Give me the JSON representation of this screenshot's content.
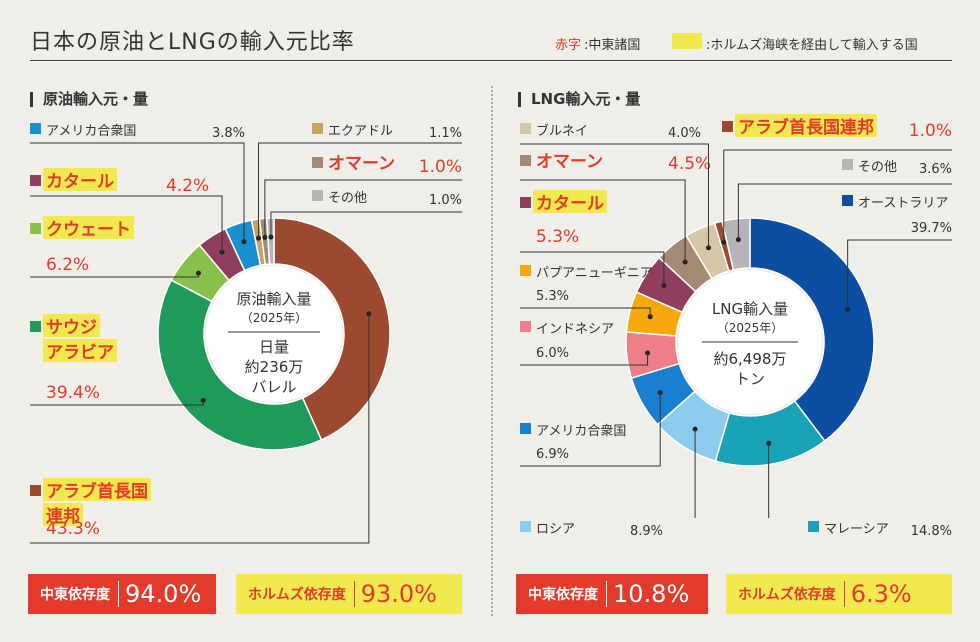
{
  "title": "日本の原油とLNGの輸入元比率",
  "legend": {
    "red_label": "赤字",
    "red_text": ":中東諸国",
    "yellow_text": ":ホルムズ海峡を経由して輸入する国"
  },
  "colors": {
    "red": "#e23b2b",
    "highlight": "#f2e94e"
  },
  "chart_data": [
    {
      "type": "pie",
      "section_title": "原油輸入元・量",
      "center": {
        "line1": "原油輸入量",
        "line2": "（2025年）",
        "line3": "日量",
        "line4": "約236万",
        "line5": "バレル"
      },
      "unit": "%",
      "slices": [
        {
          "name": "アラブ首長国連邦",
          "value": 43.3,
          "value_label": "43.3%",
          "color": "#9b4a30",
          "middle_east": true,
          "hormuz": true
        },
        {
          "name": "サウジアラビア",
          "value": 39.4,
          "value_label": "39.4%",
          "color": "#1f9a5a",
          "middle_east": true,
          "hormuz": true
        },
        {
          "name": "クウェート",
          "value": 6.2,
          "value_label": "6.2%",
          "color": "#88c04a",
          "middle_east": true,
          "hormuz": true
        },
        {
          "name": "カタール",
          "value": 4.2,
          "value_label": "4.2%",
          "color": "#8f3e5e",
          "middle_east": true,
          "hormuz": true
        },
        {
          "name": "アメリカ合衆国",
          "value": 3.8,
          "value_label": "3.8%",
          "color": "#1a8fd0",
          "middle_east": false,
          "hormuz": false
        },
        {
          "name": "エクアドル",
          "value": 1.1,
          "value_label": "1.1%",
          "color": "#c9a062",
          "middle_east": false,
          "hormuz": false
        },
        {
          "name": "オマーン",
          "value": 1.0,
          "value_label": "1.0%",
          "color": "#a48a72",
          "middle_east": true,
          "hormuz": false
        },
        {
          "name": "その他",
          "value": 1.0,
          "value_label": "1.0%",
          "color": "#b5b5b5",
          "middle_east": false,
          "hormuz": false
        }
      ],
      "dependency": {
        "middle_east_label": "中東依存度",
        "middle_east_value": "94.0%",
        "hormuz_label": "ホルムズ依存度",
        "hormuz_value": "93.0%"
      }
    },
    {
      "type": "pie",
      "section_title": "LNG輸入元・量",
      "center": {
        "line1": "LNG輸入量",
        "line2": "（2025年）",
        "line3": "約6,498万",
        "line4": "トン"
      },
      "unit": "%",
      "slices": [
        {
          "name": "オーストラリア",
          "value": 39.7,
          "value_label": "39.7%",
          "color": "#0b4ea2",
          "middle_east": false,
          "hormuz": false
        },
        {
          "name": "マレーシア",
          "value": 14.8,
          "value_label": "14.8%",
          "color": "#1aa3b5",
          "middle_east": false,
          "hormuz": false
        },
        {
          "name": "ロシア",
          "value": 8.9,
          "value_label": "8.9%",
          "color": "#8ccbed",
          "middle_east": false,
          "hormuz": false
        },
        {
          "name": "アメリカ合衆国",
          "value": 6.9,
          "value_label": "6.9%",
          "color": "#1a7fcf",
          "middle_east": false,
          "hormuz": false
        },
        {
          "name": "インドネシア",
          "value": 6.0,
          "value_label": "6.0%",
          "color": "#ee7f89",
          "middle_east": false,
          "hormuz": false
        },
        {
          "name": "パプアニューギニア",
          "value": 5.3,
          "value_label": "5.3%",
          "color": "#f5a90c",
          "middle_east": false,
          "hormuz": false
        },
        {
          "name": "カタール",
          "value": 5.3,
          "value_label": "5.3%",
          "color": "#8f3e5e",
          "middle_east": true,
          "hormuz": true
        },
        {
          "name": "オマーン",
          "value": 4.5,
          "value_label": "4.5%",
          "color": "#a48a72",
          "middle_east": true,
          "hormuz": false
        },
        {
          "name": "ブルネイ",
          "value": 4.0,
          "value_label": "4.0%",
          "color": "#d6c6a6",
          "middle_east": false,
          "hormuz": false
        },
        {
          "name": "アラブ首長国連邦",
          "value": 1.0,
          "value_label": "1.0%",
          "color": "#9b4a30",
          "middle_east": true,
          "hormuz": true
        },
        {
          "name": "その他",
          "value": 3.6,
          "value_label": "3.6%",
          "color": "#b5b5b5",
          "middle_east": false,
          "hormuz": false
        }
      ],
      "dependency": {
        "middle_east_label": "中東依存度",
        "middle_east_value": "10.8%",
        "hormuz_label": "ホルムズ依存度",
        "hormuz_value": "6.3%"
      }
    }
  ]
}
